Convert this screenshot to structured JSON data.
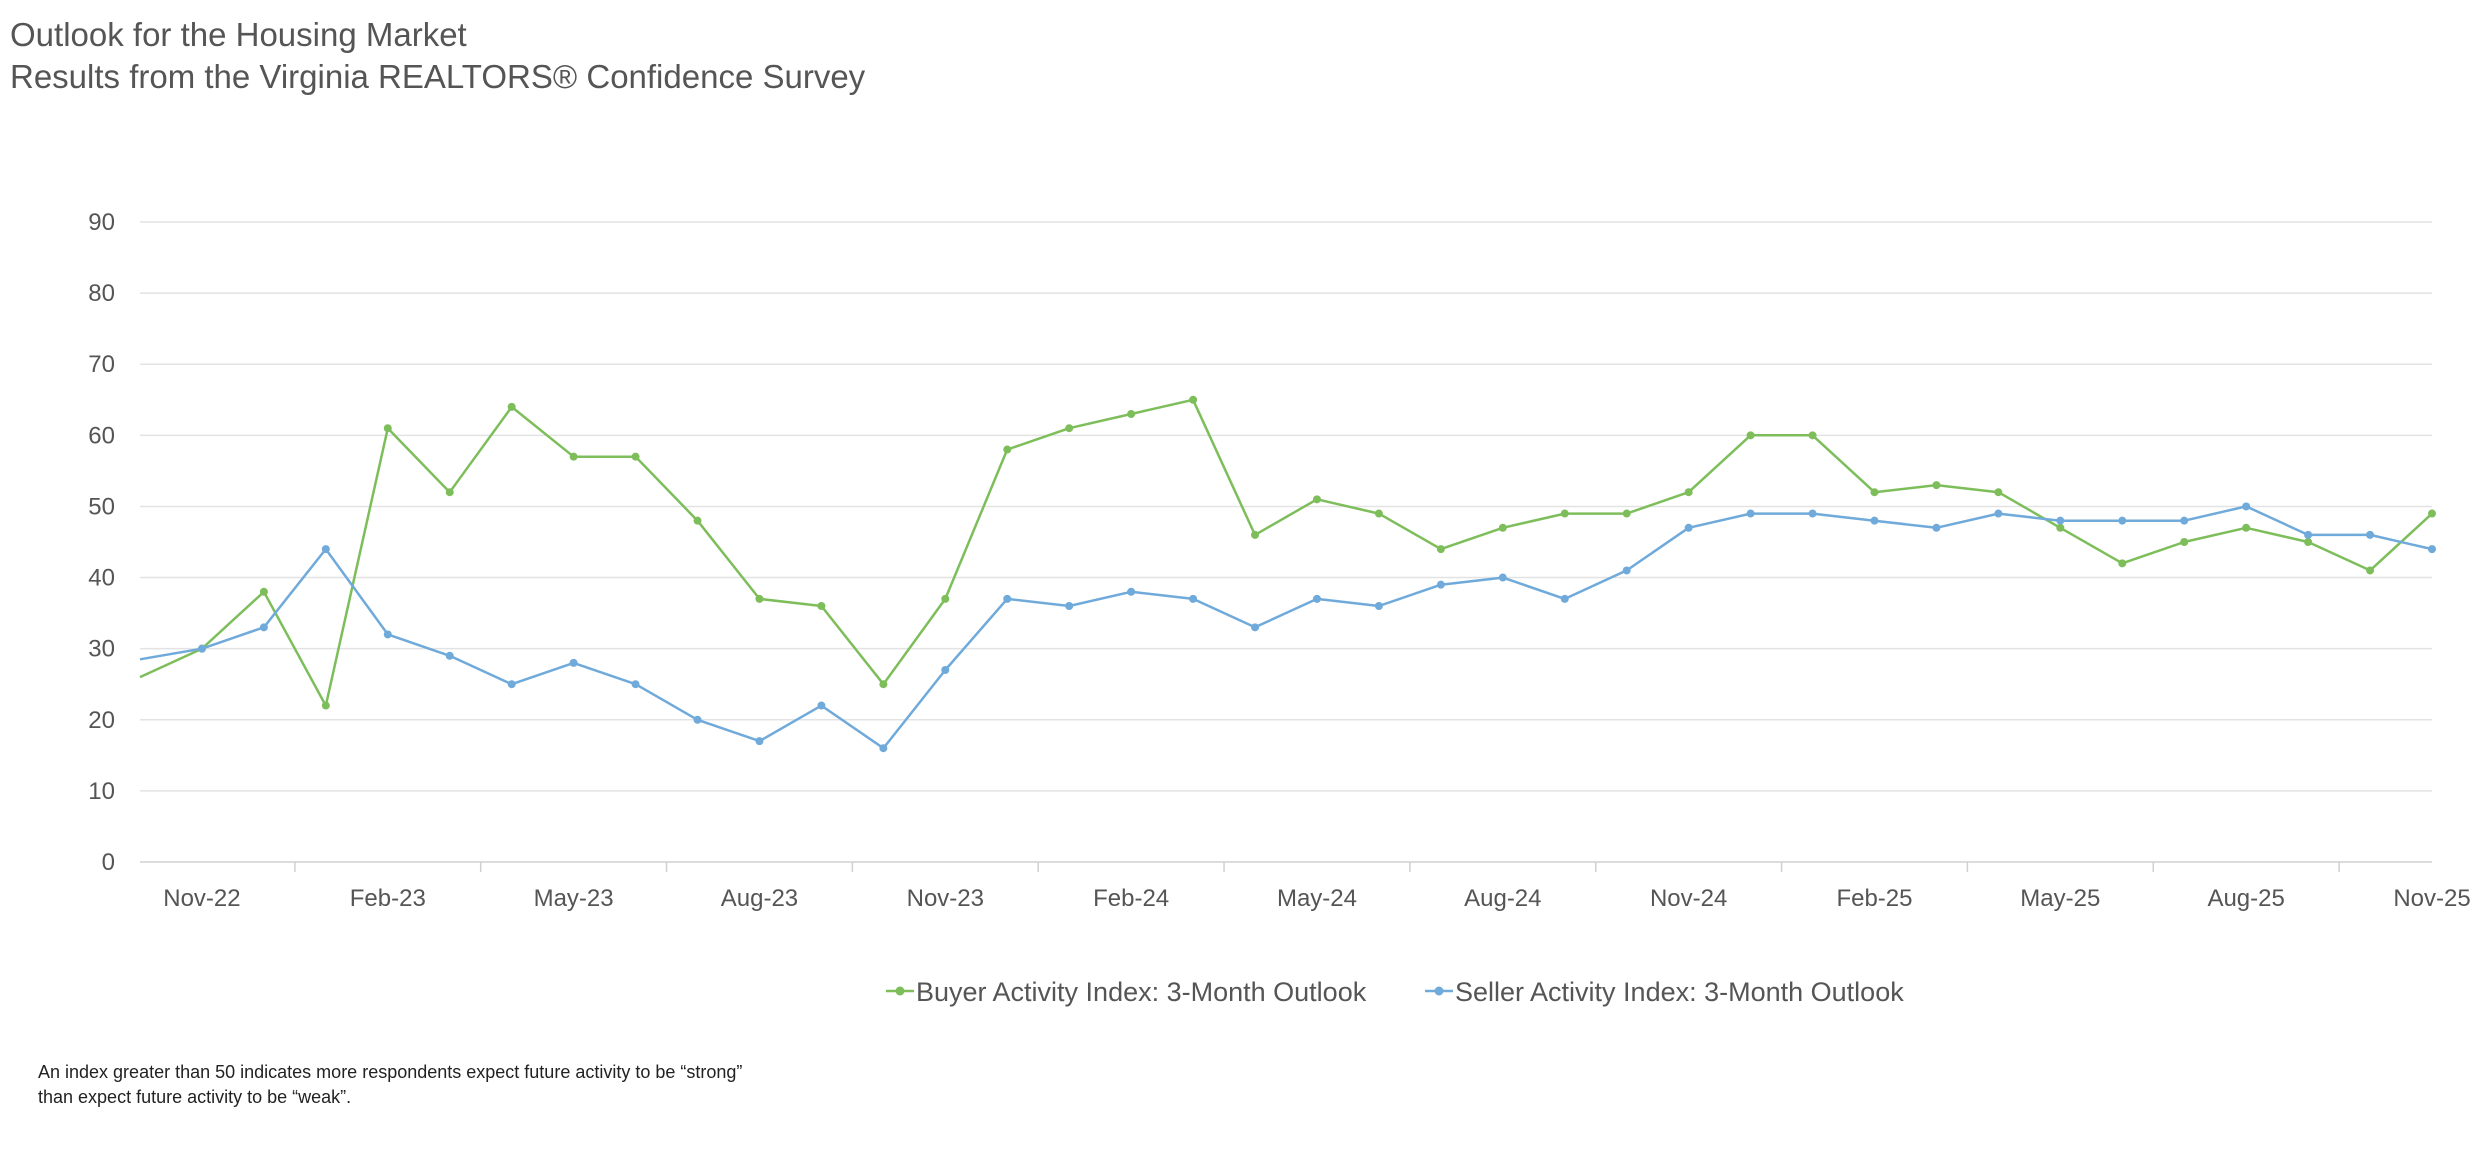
{
  "chart_data": {
    "type": "line",
    "title": "Outlook for the Housing Market",
    "subtitle": "Results from the Virginia REALTORS® Confidence Survey",
    "xlabel": "",
    "ylabel": "",
    "ylim": [
      0,
      90
    ],
    "yticks": [
      0,
      10,
      20,
      30,
      40,
      50,
      60,
      70,
      80,
      90
    ],
    "grid": true,
    "legend_position": "bottom-center",
    "x_tick_labels": [
      "Nov-22",
      "Feb-23",
      "May-23",
      "Aug-23",
      "Nov-23",
      "Feb-24",
      "May-24",
      "Aug-24",
      "Nov-24",
      "Feb-25",
      "May-25",
      "Aug-25",
      "Nov-25"
    ],
    "x_tick_every": 3,
    "categories": [
      "Oct-22",
      "Nov-22",
      "Dec-22",
      "Jan-23",
      "Feb-23",
      "Mar-23",
      "Apr-23",
      "May-23",
      "Jun-23",
      "Jul-23",
      "Aug-23",
      "Sep-23",
      "Oct-23",
      "Nov-23",
      "Dec-23",
      "Jan-24",
      "Feb-24",
      "Mar-24",
      "Apr-24",
      "May-24",
      "Jun-24",
      "Jul-24",
      "Aug-24",
      "Sep-24",
      "Oct-24",
      "Nov-24",
      "Dec-24",
      "Jan-25",
      "Feb-25",
      "Mar-25",
      "Apr-25",
      "May-25",
      "Jun-25",
      "Jul-25",
      "Aug-25",
      "Sep-25",
      "Oct-25",
      "Nov-25"
    ],
    "series": [
      {
        "name": "Buyer Activity Index: 3-Month Outlook",
        "color": "#7DBE5B",
        "values": [
          26,
          30,
          38,
          22,
          61,
          52,
          64,
          57,
          57,
          48,
          37,
          36,
          25,
          37,
          58,
          61,
          63,
          65,
          46,
          51,
          49,
          44,
          47,
          49,
          49,
          52,
          60,
          60,
          52,
          53,
          52,
          47,
          42,
          45,
          47,
          45,
          41,
          49
        ]
      },
      {
        "name": "Seller Activity Index: 3-Month Outlook",
        "color": "#6FAADB",
        "values": [
          28.5,
          30,
          33,
          44,
          32,
          29,
          25,
          28,
          25,
          20,
          17,
          22,
          16,
          27,
          37,
          36,
          38,
          37,
          33,
          37,
          36,
          39,
          40,
          37,
          41,
          47,
          49,
          49,
          48,
          47,
          49,
          48,
          48,
          48,
          50,
          46,
          46,
          44
        ]
      }
    ],
    "footnote": [
      "An index greater than 50 indicates more respondents expect future activity to be “strong”",
      "than expect future activity to be “weak”."
    ]
  }
}
